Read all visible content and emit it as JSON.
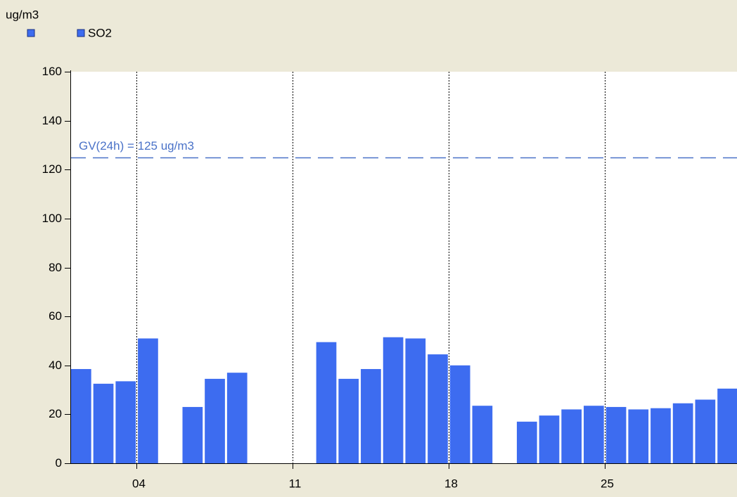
{
  "chart_data": {
    "type": "bar",
    "y_label": "ug/m3",
    "x": [
      1,
      2,
      3,
      4,
      5,
      6,
      7,
      8,
      9,
      10,
      11,
      12,
      13,
      14,
      15,
      16,
      17,
      18,
      19,
      20,
      21,
      22,
      23,
      24,
      25,
      26,
      27,
      28,
      29,
      30
    ],
    "series": [
      {
        "name": "SO2",
        "color": "#3d6cf0",
        "values": [
          38.5,
          32.5,
          33.5,
          51,
          null,
          23,
          34.5,
          37,
          null,
          null,
          null,
          49.5,
          34.5,
          38.5,
          51.5,
          51,
          44.5,
          40,
          23.5,
          null,
          17,
          19.5,
          22,
          23.5,
          23,
          22,
          22.5,
          24.5,
          26,
          30.5
        ]
      }
    ],
    "xlim": [
      1,
      30.94
    ],
    "xticks": [
      {
        "value": 4,
        "label": "04"
      },
      11,
      18,
      25
    ],
    "ylim": [
      0,
      160
    ],
    "yticks": [
      0,
      20,
      40,
      60,
      80,
      100,
      120,
      140,
      160
    ],
    "reference_line": {
      "value": 125,
      "label": "GV(24h) = 125 ug/m3",
      "color": "#4a72c8"
    },
    "grid": "x"
  }
}
